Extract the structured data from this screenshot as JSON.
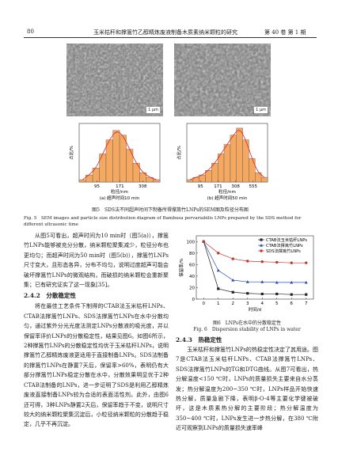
{
  "header": {
    "page": "80",
    "title": "玉米枯秆和撑篙竹乙醇精炼废液制备木质素纳米颗粒的研究",
    "issue": "第 40 卷 第 1 期"
  },
  "figure5": {
    "scale_a": "1 μm",
    "scale_b": "1 μm",
    "panels": [
      {
        "type": "histogram",
        "subcaption": "(a) 超声时间10 min",
        "xlabel": "粒径/nm",
        "ylabel": "占比/%",
        "bins": [
          60,
          71,
          85,
          101,
          120,
          143,
          170,
          202,
          240,
          285,
          339,
          403,
          480
        ],
        "values": [
          1,
          3,
          6,
          12,
          18,
          22,
          20,
          14,
          8,
          4,
          2,
          1
        ],
        "xscale": "log",
        "xlim": [
          60,
          480
        ],
        "xticks": [
          95,
          171,
          308
        ],
        "ylim": [
          0,
          25
        ],
        "color": "#f4a860"
      },
      {
        "type": "histogram",
        "subcaption": "(b) 超声时间50 min",
        "xlabel": "粒径/nm",
        "ylabel": "占比/%",
        "bins": [
          60,
          74,
          91,
          112,
          138,
          170,
          209,
          258,
          317,
          391,
          481,
          593,
          730,
          900
        ],
        "values": [
          1,
          2,
          3,
          5,
          8,
          12,
          16,
          20,
          23,
          18,
          10,
          4,
          2
        ],
        "xscale": "log",
        "xlim": [
          60,
          900
        ],
        "xticks": [
          95,
          171,
          308,
          555
        ],
        "ylim": [
          0,
          25
        ],
        "color": "#f4a860"
      }
    ],
    "caption_zh": "图5　SDS法不同超声时间下制备所得撑篙竹LNPs的SEM图及粒径分布图",
    "caption_en": "Fig. 5　SEM images and particle size distribution diagram of Bambusa pervariabilis LNPs prepared by the SDS method for different ultrasonic time"
  },
  "left_column": {
    "paragraph_1": "从图5可看出，超声时间为10 min时（图5(a)），撑篙竹LNPs能够被充分分散，纳米颗粒聚集减少，粒径分布也更均匀；而超声时间为50 min时（图5(b)），撑篙竹LNPs尺寸变大，且形态各异，分布不均匀，说明过度超声可能会破坏撑篙竹LNPs的微观结构，而破损的纳米颗粒会重新聚集；已有研究证实了这一现象[35]。",
    "heading": "2.4.2　分散稳定性",
    "paragraph_2": "将在最佳工艺条件下制得的CTAB法玉米枯秆LNPs、CTAB法撑篙竹LNPs、SDS法撑篙竹LNPs在水中分散均匀，通过紫外分光光度法测定LNPs分散液的吸光度，并以保留率评价LNPs的分散稳定性，结果见图6。如图6所示，2种撑篙竹LNPs的分散稳定性均优于玉米枯秆LNPs，说明撑篙竹乙醇精炼废液更适用于直接制备LNPs。SDS法制备的撑篙竹LNPs在静置7天后，保留率>60%，表明仍有大部分撑篙竹LNPs稳定分散在水中，分散效果明显优于2种CTAB法制备的LNPs，进一步证明了SDS是利用乙醇精炼废液直接制备LNPs较为合适的表面活性剂。此外，由图6还可得，3种LNPs静置2天后，保留率趋于不变，说明尺寸较大的纳米颗粒聚集沉淀后，小粒径纳米颗粒的分散趋于稳定，几乎不再沉淀。"
  },
  "figure6": {
    "chart": {
      "type": "line",
      "xlabel": "时间/d",
      "ylabel": "保留率/%",
      "x": [
        0,
        1,
        2,
        3,
        4,
        5,
        6,
        7
      ],
      "series": [
        {
          "name": "CTAB法玉米枯秆LNPs",
          "color": "#222222",
          "values": [
            100,
            18,
            12,
            10,
            9,
            9,
            8,
            8
          ]
        },
        {
          "name": "CTAB法撑篙竹LNPs",
          "color": "#2b4fa8",
          "values": [
            100,
            50,
            33,
            30,
            30,
            29,
            29,
            29
          ]
        },
        {
          "name": "SDS法撑篙竹LNPs",
          "color": "#c0392b",
          "values": [
            100,
            80,
            70,
            66,
            65,
            64,
            63,
            63
          ]
        }
      ],
      "xlim": [
        -0.5,
        7.5
      ],
      "xticks": [
        0,
        1,
        2,
        3,
        4,
        5,
        6,
        7
      ],
      "ylim": [
        0,
        110
      ],
      "yticks": [
        0,
        20,
        40,
        60,
        80,
        100
      ],
      "legend": "upper right"
    },
    "caption_zh": "图6　LNPs在水中的分散稳定性",
    "caption_en": "Fig. 6　Dispersion stability of LNPs in water"
  },
  "right_column": {
    "heading": "2.4.3　热稳定性",
    "paragraph": "玉米枯秆和撑篙竹LNPs的热稳定性决定了其用途。图7是CTAB法玉米枯秆LNPs、CTAB法撑篙竹LNPs、SDS法撑篙竹LNPs的TG和DTG曲线。从图7可看出，热分解温度<150 ℃时，LNPs的质量损失主要来自水分蒸发；热分解温度为200~350 ℃时，LNPs样品开始快速热分解，质量急剧下降，表明β-O-4等主要化学键被破坏，这是木质素热分解的主要阶段；热分解温度为350~400 ℃时，LNPs发生进一步热分解，在380 ℃附近可观察到LNPs的质量损失速率峰"
  }
}
